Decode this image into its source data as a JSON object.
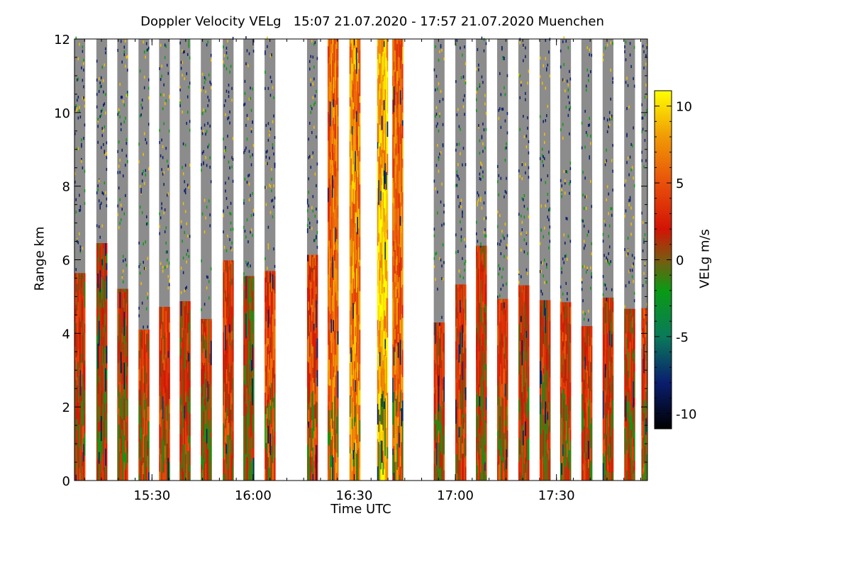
{
  "chart_data": {
    "type": "heatmap",
    "title": "Doppler Velocity VELg   15:07 21.07.2020 - 17:57 21.07.2020 Muenchen",
    "xlabel": "Time UTC",
    "ylabel": "Range km",
    "colorbar_label": "VELg m/s",
    "x_range_minutes_utc": [
      907,
      1077
    ],
    "x_ticks": [
      {
        "minute": 930,
        "label": "15:30"
      },
      {
        "minute": 960,
        "label": "16:00"
      },
      {
        "minute": 990,
        "label": "16:30"
      },
      {
        "minute": 1020,
        "label": "17:00"
      },
      {
        "minute": 1050,
        "label": "17:30"
      }
    ],
    "ylim": [
      0,
      12
    ],
    "y_ticks": [
      0,
      2,
      4,
      6,
      8,
      10,
      12
    ],
    "colorbar_range": [
      -11,
      11
    ],
    "colorbar_ticks": [
      -10,
      -5,
      0,
      5,
      10
    ],
    "colorbar_stops": [
      {
        "value": -11,
        "color": "#000000"
      },
      {
        "value": -8,
        "color": "#0a1e6e"
      },
      {
        "value": -5,
        "color": "#0a7a5a"
      },
      {
        "value": -2,
        "color": "#0a9a14"
      },
      {
        "value": 0,
        "color": "#7a5a10"
      },
      {
        "value": 2,
        "color": "#d21405"
      },
      {
        "value": 5,
        "color": "#e8500a"
      },
      {
        "value": 8,
        "color": "#f09a05"
      },
      {
        "value": 11,
        "color": "#ffff00"
      }
    ],
    "no_signal_color": "#8c8c8c",
    "scans": [
      {
        "start": 907.0,
        "end": 910.2,
        "mean_velocity": 2
      },
      {
        "start": 913.5,
        "end": 916.7,
        "mean_velocity": 1
      },
      {
        "start": 919.7,
        "end": 922.9,
        "mean_velocity": 2
      },
      {
        "start": 926.0,
        "end": 929.2,
        "mean_velocity": 3
      },
      {
        "start": 932.1,
        "end": 935.3,
        "mean_velocity": 3
      },
      {
        "start": 938.2,
        "end": 941.4,
        "mean_velocity": 2
      },
      {
        "start": 944.5,
        "end": 947.7,
        "mean_velocity": 2
      },
      {
        "start": 951.0,
        "end": 954.2,
        "mean_velocity": 3
      },
      {
        "start": 957.1,
        "end": 960.3,
        "mean_velocity": 1
      },
      {
        "start": 963.4,
        "end": 966.6,
        "mean_velocity": 4
      },
      {
        "start": 976.0,
        "end": 979.2,
        "mean_velocity": 4
      },
      {
        "start": 982.1,
        "end": 985.3,
        "mean_velocity": 6
      },
      {
        "start": 988.6,
        "end": 991.8,
        "mean_velocity": 7
      },
      {
        "start": 996.8,
        "end": 1000.0,
        "mean_velocity": 9
      },
      {
        "start": 1001.3,
        "end": 1004.5,
        "mean_velocity": 6
      },
      {
        "start": 1013.6,
        "end": 1016.8,
        "mean_velocity": 3
      },
      {
        "start": 1020.0,
        "end": 1023.2,
        "mean_velocity": 3
      },
      {
        "start": 1026.1,
        "end": 1029.3,
        "mean_velocity": 2
      },
      {
        "start": 1032.4,
        "end": 1035.6,
        "mean_velocity": 3
      },
      {
        "start": 1038.7,
        "end": 1041.9,
        "mean_velocity": 2
      },
      {
        "start": 1045.0,
        "end": 1048.2,
        "mean_velocity": 2
      },
      {
        "start": 1051.1,
        "end": 1054.3,
        "mean_velocity": 3
      },
      {
        "start": 1057.4,
        "end": 1060.6,
        "mean_velocity": 3
      },
      {
        "start": 1063.7,
        "end": 1066.9,
        "mean_velocity": 2
      },
      {
        "start": 1070.1,
        "end": 1073.3,
        "mean_velocity": 2
      },
      {
        "start": 1075.2,
        "end": 1077.0,
        "mean_velocity": 3
      }
    ]
  }
}
